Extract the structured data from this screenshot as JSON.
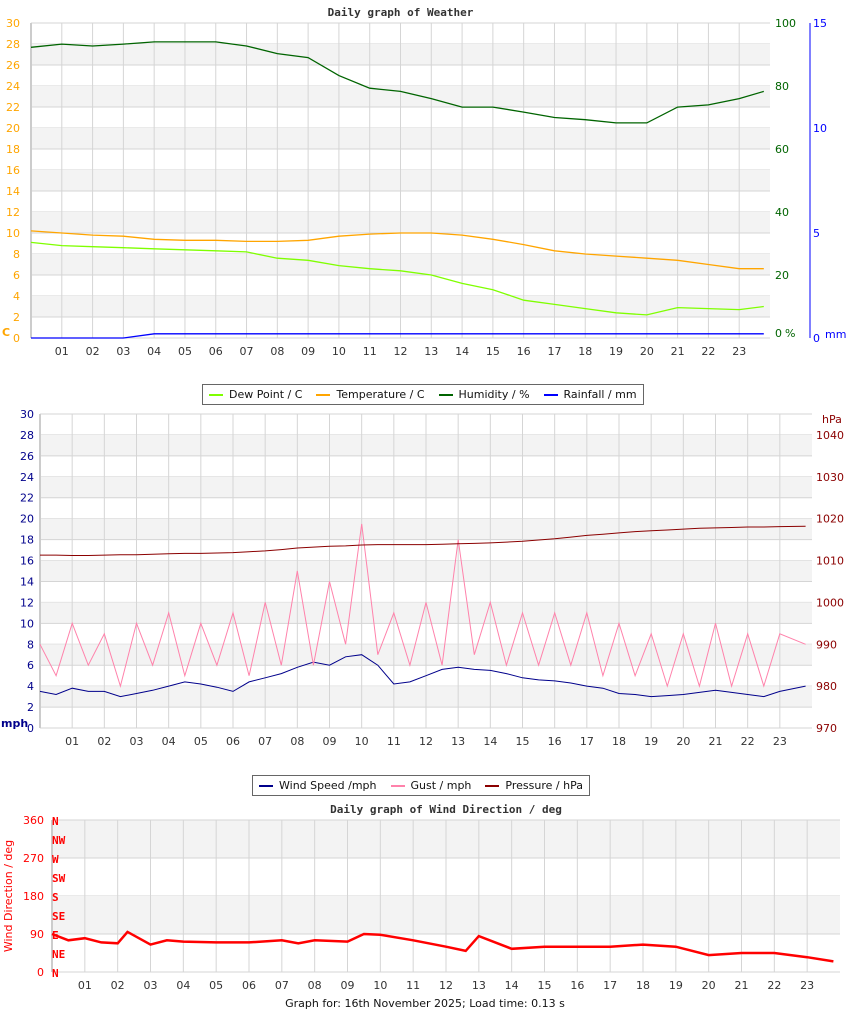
{
  "chart_data": [
    {
      "type": "line",
      "title": "Daily graph of Weather",
      "xlabel": "",
      "x_ticks": [
        "01",
        "02",
        "03",
        "04",
        "05",
        "06",
        "07",
        "08",
        "09",
        "10",
        "11",
        "12",
        "13",
        "14",
        "15",
        "16",
        "17",
        "18",
        "19",
        "20",
        "21",
        "22",
        "23"
      ],
      "axes": {
        "left": {
          "unit_label": "C",
          "ylim": [
            0,
            30
          ],
          "ticks": [
            0,
            2,
            4,
            6,
            8,
            10,
            12,
            14,
            16,
            18,
            20,
            22,
            24,
            26,
            28,
            30
          ],
          "color": "#ffa500"
        },
        "right1": {
          "unit_label": "%",
          "ylim": [
            0,
            100
          ],
          "ticks": [
            0,
            20,
            40,
            60,
            80,
            100
          ],
          "color": "#006400"
        },
        "right2": {
          "unit_label": "mm",
          "ylim": [
            0,
            15
          ],
          "ticks": [
            0,
            5,
            10,
            15
          ],
          "color": "#0000ff"
        }
      },
      "grid": true,
      "legend": "bottom",
      "x_hours": [
        0,
        1,
        2,
        3,
        4,
        5,
        6,
        7,
        8,
        9,
        10,
        11,
        12,
        13,
        14,
        15,
        16,
        17,
        18,
        19,
        20,
        21,
        22,
        23,
        23.8
      ],
      "series": [
        {
          "name": "Dew Point / C",
          "axis": "left",
          "color": "#7fff00",
          "values": [
            9.1,
            8.8,
            8.7,
            8.6,
            8.5,
            8.4,
            8.3,
            8.2,
            7.6,
            7.4,
            6.9,
            6.6,
            6.4,
            6.0,
            5.2,
            4.6,
            3.6,
            3.2,
            2.8,
            2.4,
            2.2,
            2.9,
            2.8,
            2.7,
            3.0
          ]
        },
        {
          "name": "Temperature / C",
          "axis": "left",
          "color": "#ffa500",
          "values": [
            10.2,
            10.0,
            9.8,
            9.7,
            9.4,
            9.3,
            9.3,
            9.2,
            9.2,
            9.3,
            9.7,
            9.9,
            10.0,
            10.0,
            9.8,
            9.4,
            8.9,
            8.3,
            8.0,
            7.8,
            7.6,
            7.4,
            7.0,
            6.6,
            6.6
          ]
        },
        {
          "name": "Humidity / %",
          "axis": "right1",
          "color": "#006400",
          "values": [
            92.3,
            93.3,
            92.7,
            93.3,
            94,
            94,
            94,
            92.7,
            90.3,
            89,
            83.3,
            79.3,
            78.3,
            76,
            73.3,
            73.3,
            71.7,
            70,
            69.3,
            68.3,
            68.3,
            73.3,
            74,
            76,
            78.3
          ]
        },
        {
          "name": "Rainfall / mm",
          "axis": "right2",
          "color": "#0000ff",
          "values": [
            0,
            0,
            0,
            0,
            0.2,
            0.2,
            0.2,
            0.2,
            0.2,
            0.2,
            0.2,
            0.2,
            0.2,
            0.2,
            0.2,
            0.2,
            0.2,
            0.2,
            0.2,
            0.2,
            0.2,
            0.2,
            0.2,
            0.2,
            0.2
          ]
        }
      ]
    },
    {
      "type": "line",
      "title": "",
      "x_ticks": [
        "01",
        "02",
        "03",
        "04",
        "05",
        "06",
        "07",
        "08",
        "09",
        "10",
        "11",
        "12",
        "13",
        "14",
        "15",
        "16",
        "17",
        "18",
        "19",
        "20",
        "21",
        "22",
        "23"
      ],
      "axes": {
        "left": {
          "unit_label": "mph",
          "ylim": [
            0,
            30
          ],
          "ticks": [
            0,
            2,
            4,
            6,
            8,
            10,
            12,
            14,
            16,
            18,
            20,
            22,
            24,
            26,
            28,
            30
          ],
          "color": "#00008b"
        },
        "right1": {
          "unit_label": "hPa",
          "ylim": [
            970,
            1045
          ],
          "ticks": [
            970,
            980,
            990,
            1000,
            1010,
            1020,
            1030,
            1040
          ],
          "color": "#8b0000"
        }
      },
      "grid": true,
      "legend": "top",
      "x_hours": [
        0,
        0.5,
        1,
        1.5,
        2,
        2.5,
        3,
        3.5,
        4,
        4.5,
        5,
        5.5,
        6,
        6.5,
        7,
        7.5,
        8,
        8.5,
        9,
        9.5,
        10,
        10.5,
        11,
        11.5,
        12,
        12.5,
        13,
        13.5,
        14,
        14.5,
        15,
        15.5,
        16,
        16.5,
        17,
        17.5,
        18,
        18.5,
        19,
        19.5,
        20,
        20.5,
        21,
        21.5,
        22,
        22.5,
        23,
        23.8
      ],
      "series": [
        {
          "name": "Wind Speed /mph",
          "axis": "left",
          "color": "#00008b",
          "values": [
            3.5,
            3.2,
            3.8,
            3.5,
            3.5,
            3.0,
            3.3,
            3.6,
            4.0,
            4.4,
            4.2,
            3.9,
            3.5,
            4.4,
            4.8,
            5.2,
            5.8,
            6.3,
            6.0,
            6.8,
            7.0,
            6.0,
            4.2,
            4.4,
            5.0,
            5.6,
            5.8,
            5.6,
            5.5,
            5.2,
            4.8,
            4.6,
            4.5,
            4.3,
            4.0,
            3.8,
            3.3,
            3.2,
            3.0,
            3.1,
            3.2,
            3.4,
            3.6,
            3.4,
            3.2,
            3.0,
            3.5,
            4.0
          ]
        },
        {
          "name": "Gust / mph",
          "axis": "left",
          "color": "#ff82ab",
          "values": [
            8,
            5,
            10,
            6,
            9,
            4,
            10,
            6,
            11,
            5,
            10,
            6,
            11,
            5,
            12,
            6,
            15,
            6,
            14,
            8,
            19.5,
            7,
            11,
            6,
            12,
            6,
            18,
            7,
            12,
            6,
            11,
            6,
            11,
            6,
            11,
            5,
            10,
            5,
            9,
            4,
            9,
            4,
            10,
            4,
            9,
            4,
            9,
            8
          ]
        },
        {
          "name": "Pressure / hPa",
          "axis": "right1",
          "color": "#8b0000",
          "values": [
            1011.3,
            1011.3,
            1011.2,
            1011.2,
            1011.3,
            1011.4,
            1011.4,
            1011.5,
            1011.6,
            1011.7,
            1011.7,
            1011.8,
            1011.9,
            1012.1,
            1012.3,
            1012.6,
            1013.0,
            1013.2,
            1013.4,
            1013.5,
            1013.7,
            1013.8,
            1013.8,
            1013.8,
            1013.8,
            1013.9,
            1014.0,
            1014.1,
            1014.2,
            1014.4,
            1014.6,
            1014.9,
            1015.2,
            1015.6,
            1016.0,
            1016.3,
            1016.6,
            1016.9,
            1017.1,
            1017.3,
            1017.5,
            1017.7,
            1017.8,
            1017.9,
            1018.0,
            1018.0,
            1018.1,
            1018.2
          ]
        }
      ]
    },
    {
      "type": "line",
      "title": "Daily graph of Wind Direction / deg",
      "ylabel": "Wind Direction / deg",
      "ylim": [
        0,
        360
      ],
      "y_ticks": [
        0,
        90,
        180,
        270,
        360
      ],
      "compass_labels": [
        "N",
        "NE",
        "E",
        "SE",
        "S",
        "SW",
        "W",
        "NW",
        "N"
      ],
      "x_ticks": [
        "01",
        "02",
        "03",
        "04",
        "05",
        "06",
        "07",
        "08",
        "09",
        "10",
        "11",
        "12",
        "13",
        "14",
        "15",
        "16",
        "17",
        "18",
        "19",
        "20",
        "21",
        "22",
        "23"
      ],
      "grid": true,
      "x_hours": [
        0,
        0.5,
        1,
        1.5,
        2,
        2.3,
        3,
        3.5,
        4,
        5,
        6,
        7,
        7.5,
        8,
        9,
        9.5,
        10,
        11,
        12,
        12.6,
        13,
        14,
        15,
        16,
        17,
        18,
        19,
        20,
        21,
        22,
        23,
        23.8
      ],
      "series": [
        {
          "color": "#ff0000",
          "values": [
            90,
            75,
            80,
            70,
            68,
            95,
            65,
            75,
            72,
            70,
            70,
            75,
            68,
            75,
            72,
            90,
            88,
            75,
            60,
            50,
            85,
            55,
            60,
            60,
            60,
            65,
            60,
            40,
            45,
            45,
            35,
            25
          ]
        }
      ]
    }
  ],
  "legend1": [
    "Dew Point / C",
    "Temperature / C",
    "Humidity / %",
    "Rainfall / mm"
  ],
  "legend2": [
    "Wind Speed /mph",
    "Gust / mph",
    "Pressure / hPa"
  ],
  "footer": "Graph for: 16th November 2025; Load time: 0.13 s"
}
